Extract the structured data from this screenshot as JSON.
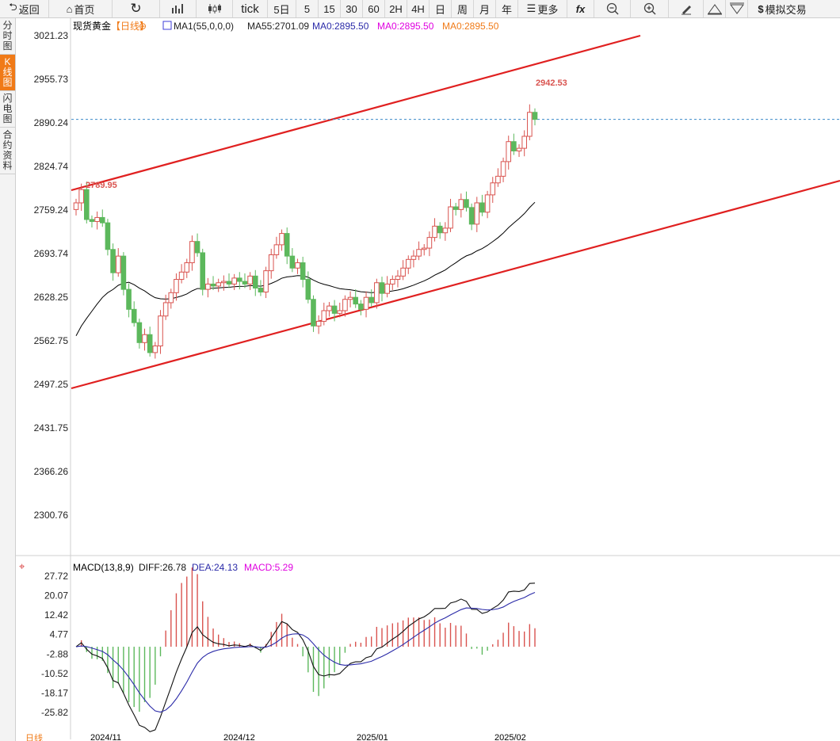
{
  "toolbar": {
    "back": "返回",
    "home": "首页",
    "refresh": "↻",
    "tick": "tick",
    "periods": [
      "5日",
      "5",
      "15",
      "30",
      "60",
      "2H",
      "4H",
      "日",
      "周",
      "月",
      "年"
    ],
    "more": "更多",
    "fx": "fx",
    "zoom_out": "−",
    "zoom_in": "+",
    "sim_trade": "模拟交易"
  },
  "side_tabs": [
    {
      "label": "分时图",
      "active": false
    },
    {
      "label": "K线图",
      "active": true
    },
    {
      "label": "闪电图",
      "active": false
    },
    {
      "label": "合约资料",
      "active": false
    }
  ],
  "colors": {
    "up": "#d9534f",
    "down": "#5cb85c",
    "ma55": "#000000",
    "channel": "#e02020",
    "diff": "#111111",
    "dea": "#2a2aa8",
    "macd": "#e000e0",
    "ma0": "#f07a17"
  },
  "main": {
    "title": "现货黄金",
    "period_tag": "【日线】",
    "ma1": "MA1(55,0,0,0)",
    "ma55": "MA55:2701.09",
    "ma0_a": "MA0:2895.50",
    "ma0_b": "MA0:2895.50",
    "ma0_c": "MA0:2895.50",
    "high_label": "2942.53",
    "left_label": "2789.95",
    "last_price": 2895.5,
    "y_ticks": [
      "3021.23",
      "2955.73",
      "2890.24",
      "2824.74",
      "2759.24",
      "2693.74",
      "2628.25",
      "2562.75",
      "2497.25",
      "2431.75",
      "2366.26",
      "2300.76"
    ],
    "x_ticks": [
      "2024/11",
      "2024/12",
      "2025/01",
      "2025/02"
    ],
    "period_label": "日线"
  },
  "macd": {
    "title": "MACD(13,8,9)",
    "diff": "DIFF:26.78",
    "dea": "DEA:24.13",
    "macd": "MACD:5.29",
    "y_ticks": [
      "27.72",
      "20.07",
      "12.42",
      "4.77",
      "-2.88",
      "-10.52",
      "-18.17",
      "-25.82"
    ]
  },
  "chart_data": {
    "type": "candlestick",
    "y_range": [
      2280,
      3040
    ],
    "closes": [
      2770,
      2789.95,
      2745,
      2742,
      2748,
      2740,
      2700,
      2665,
      2690,
      2640,
      2610,
      2590,
      2560,
      2572,
      2545,
      2555,
      2600,
      2620,
      2635,
      2655,
      2666,
      2680,
      2712,
      2695,
      2640,
      2648,
      2645,
      2650,
      2652,
      2648,
      2657,
      2652,
      2648,
      2660,
      2642,
      2636,
      2668,
      2692,
      2707,
      2724,
      2690,
      2672,
      2680,
      2655,
      2625,
      2585,
      2592,
      2608,
      2615,
      2604,
      2608,
      2625,
      2628,
      2618,
      2610,
      2628,
      2620,
      2650,
      2634,
      2648,
      2655,
      2660,
      2672,
      2685,
      2690,
      2700,
      2702,
      2718,
      2735,
      2725,
      2732,
      2764,
      2760,
      2775,
      2763,
      2738,
      2770,
      2756,
      2782,
      2800,
      2810,
      2832,
      2862,
      2848,
      2852,
      2870,
      2906,
      2895.5
    ]
  }
}
